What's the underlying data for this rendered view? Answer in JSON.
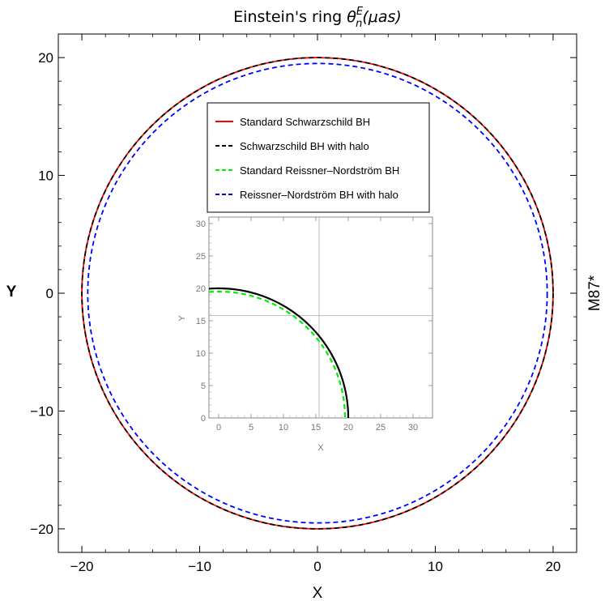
{
  "chart_data": {
    "type": "line",
    "title": "Einstein's ring θ_n^E(μas)",
    "xlabel": "X",
    "ylabel": "Y",
    "right_label": "M87*",
    "xlim": [
      -22,
      22
    ],
    "ylim": [
      -22,
      22
    ],
    "xticks": [
      -20,
      -10,
      0,
      10,
      20
    ],
    "yticks": [
      -20,
      -10,
      0,
      10,
      20
    ],
    "tick_labels_x": [
      "−20",
      "−10",
      "0",
      "10",
      "20"
    ],
    "tick_labels_y": [
      "−20",
      "−10",
      "0",
      "10",
      "20"
    ],
    "grid": false,
    "legend_position": "top-center",
    "series": [
      {
        "name": "Standard Schwarzschild BH",
        "radius": 20.0,
        "color": "#ff0000",
        "dash": "solid"
      },
      {
        "name": "Schwarzschild BH with halo",
        "radius": 20.0,
        "color": "#000000",
        "dash": "dashed"
      },
      {
        "name": "Standard Reissner–Nordström BH",
        "radius": 19.5,
        "color": "#00ee00",
        "dash": "dashed"
      },
      {
        "name": "Reissner–Nordström BH with halo",
        "radius": 19.5,
        "color": "#0000ff",
        "dash": "dashed"
      }
    ],
    "inset": {
      "type": "line",
      "xlabel": "X",
      "ylabel": "Y",
      "xlim": [
        -1.5,
        33
      ],
      "ylim": [
        0,
        31
      ],
      "xticks": [
        0,
        5,
        10,
        15,
        20,
        25,
        30
      ],
      "yticks": [
        0,
        5,
        10,
        15,
        20,
        25,
        30
      ],
      "gridlines": {
        "x": 15.5,
        "y": 15.8
      },
      "series": [
        {
          "name": "Schwarzschild BH with halo",
          "radius": 20.0,
          "color": "#000000",
          "dash": "solid"
        },
        {
          "name": "Standard Reissner–Nordström BH",
          "radius": 19.5,
          "color": "#00ee00",
          "dash": "dashed"
        }
      ]
    }
  }
}
